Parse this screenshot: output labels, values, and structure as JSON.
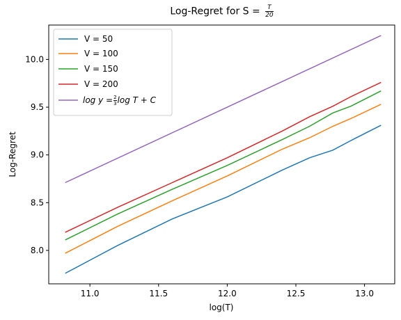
{
  "chart_data": {
    "type": "line",
    "title_prefix": "Log-Regret for S = ",
    "title_frac_num": "T",
    "title_frac_den": "20",
    "xlabel": "log(T)",
    "ylabel": "Log-Regret",
    "xlim": [
      10.7,
      13.22
    ],
    "ylim": [
      7.65,
      10.36
    ],
    "xticks": [
      11.0,
      11.5,
      12.0,
      12.5,
      13.0
    ],
    "xtick_labels": [
      "11.0",
      "11.5",
      "12.0",
      "12.5",
      "13.0"
    ],
    "yticks": [
      8.0,
      8.5,
      9.0,
      9.5,
      10.0
    ],
    "ytick_labels": [
      "8.0",
      "8.5",
      "9.0",
      "9.5",
      "10.0"
    ],
    "grid": false,
    "legend_position": "top-left",
    "series": [
      {
        "name": "V = 50",
        "color": "#1f77b4",
        "x": [
          10.82,
          11.2,
          11.6,
          12.0,
          12.4,
          12.6,
          12.77,
          12.9,
          13.12
        ],
        "y": [
          7.76,
          8.05,
          8.33,
          8.56,
          8.84,
          8.97,
          9.05,
          9.15,
          9.31
        ]
      },
      {
        "name": "V = 100",
        "color": "#ff7f0e",
        "x": [
          10.82,
          11.2,
          11.6,
          12.0,
          12.4,
          12.6,
          12.77,
          12.9,
          13.12
        ],
        "y": [
          7.97,
          8.25,
          8.52,
          8.78,
          9.06,
          9.18,
          9.3,
          9.38,
          9.53
        ]
      },
      {
        "name": "V = 150",
        "color": "#2ca02c",
        "x": [
          10.82,
          11.2,
          11.6,
          12.0,
          12.4,
          12.6,
          12.77,
          12.9,
          13.12
        ],
        "y": [
          8.11,
          8.38,
          8.64,
          8.89,
          9.16,
          9.3,
          9.44,
          9.51,
          9.67
        ]
      },
      {
        "name": "V = 200",
        "color": "#d62728",
        "x": [
          10.82,
          11.2,
          11.6,
          12.0,
          12.4,
          12.6,
          12.77,
          12.9,
          13.12
        ],
        "y": [
          8.19,
          8.45,
          8.71,
          8.97,
          9.25,
          9.4,
          9.51,
          9.61,
          9.76
        ]
      },
      {
        "name": "log y = (2/3) log T + C",
        "color": "#9467bd",
        "x": [
          10.82,
          13.12
        ],
        "y": [
          8.71,
          10.25
        ]
      }
    ],
    "legend_labels": {
      "s0": "V = 50",
      "s1": "V = 100",
      "s2": "V = 150",
      "s3": "V = 200",
      "s4_lhs": "log y =",
      "s4_num": "2",
      "s4_den": "3",
      "s4_rhs": "log T + C"
    }
  }
}
